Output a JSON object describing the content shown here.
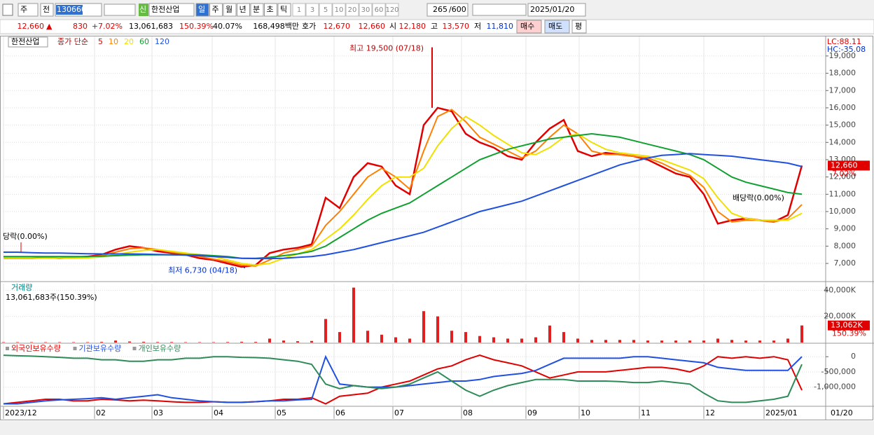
{
  "toolbar": {
    "market": "주",
    "market2": "전",
    "code": "130660",
    "badge": "신",
    "name": "한전산업",
    "periods": [
      "일",
      "주",
      "월",
      "년",
      "분",
      "초",
      "틱"
    ],
    "units": [
      "1",
      "3",
      "5",
      "10",
      "20",
      "30",
      "60",
      "120"
    ],
    "count": "265",
    "total": "/600",
    "date": "2025/01/20"
  },
  "quote_bar": {
    "price": "12,660",
    "arrow": "▲",
    "change": "830",
    "change_rate": "+7.02%",
    "volume": "13,061,683",
    "volume_rate": "150.39%",
    "turnover": "40.07%",
    "amount": "168,498백만",
    "ask_label": "호가",
    "ask": "12,670",
    "bid": "12,660",
    "open_label": "시",
    "open": "12,180",
    "high_label": "고",
    "high": "13,570",
    "low_label": "저",
    "low": "11,810",
    "buy": "매수",
    "sell": "매도",
    "avg": "평"
  },
  "chart_data": [
    {
      "type": "line",
      "title": "한전산업",
      "legend_prefix": "종가 단순",
      "xlim": [
        0,
        57
      ],
      "xticks": [
        {
          "value": 0,
          "label": "2023/12"
        },
        {
          "value": 6.5,
          "label": "02"
        },
        {
          "value": 10.6,
          "label": "03"
        },
        {
          "value": 14.9,
          "label": "04"
        },
        {
          "value": 19.4,
          "label": "05"
        },
        {
          "value": 23.6,
          "label": "06"
        },
        {
          "value": 27.8,
          "label": "07"
        },
        {
          "value": 32.7,
          "label": "08"
        },
        {
          "value": 37.3,
          "label": "09"
        },
        {
          "value": 41.1,
          "label": "10"
        },
        {
          "value": 45.4,
          "label": "11"
        },
        {
          "value": 50,
          "label": "12"
        },
        {
          "value": 54.3,
          "label": "2025/01"
        }
      ],
      "end_label": "01/20",
      "ylim": [
        6030,
        20130
      ],
      "yticks": [
        {
          "value": 7000,
          "label": "7,000"
        },
        {
          "value": 8000,
          "label": "8,000"
        },
        {
          "value": 9000,
          "label": "9,000"
        },
        {
          "value": 10000,
          "label": "10,000"
        },
        {
          "value": 11000,
          "label": "11,000"
        },
        {
          "value": 12000,
          "label": "12,000"
        },
        {
          "value": 13000,
          "label": "13,000"
        },
        {
          "value": 14000,
          "label": "14,000"
        },
        {
          "value": 15000,
          "label": "15,000"
        },
        {
          "value": 16000,
          "label": "16,000"
        },
        {
          "value": 17000,
          "label": "17,000"
        },
        {
          "value": 18000,
          "label": "18,000"
        },
        {
          "value": 19000,
          "label": "19,000"
        }
      ],
      "grid": true,
      "series": [
        {
          "name": "5",
          "color": "#e00000",
          "values": [
            7300,
            7300,
            7300,
            7350,
            7300,
            7350,
            7400,
            7500,
            7800,
            8000,
            7900,
            7700,
            7600,
            7500,
            7300,
            7200,
            7000,
            6800,
            6900,
            7600,
            7800,
            7900,
            8100,
            10800,
            10200,
            12000,
            12800,
            12600,
            11500,
            11000,
            15000,
            16000,
            15800,
            14500,
            14000,
            13700,
            13200,
            13000,
            14000,
            14800,
            15300,
            13500,
            13200,
            13400,
            13300,
            13200,
            13000,
            12600,
            12200,
            12000,
            11000,
            9300,
            9500,
            9600,
            9500,
            9400,
            9800,
            12660
          ]
        },
        {
          "name": "10",
          "color": "#ff8000",
          "values": [
            7300,
            7300,
            7300,
            7320,
            7320,
            7330,
            7370,
            7450,
            7650,
            7850,
            7900,
            7800,
            7650,
            7550,
            7400,
            7250,
            7100,
            6900,
            6850,
            7200,
            7600,
            7800,
            8000,
            9200,
            10000,
            11000,
            12000,
            12500,
            12000,
            11300,
            13500,
            15500,
            15900,
            15200,
            14300,
            13900,
            13500,
            13100,
            13500,
            14300,
            15000,
            14500,
            13500,
            13300,
            13300,
            13200,
            13100,
            12800,
            12400,
            12100,
            11400,
            10000,
            9400,
            9500,
            9500,
            9400,
            9600,
            10400
          ]
        },
        {
          "name": "20",
          "color": "#f0e000",
          "values": [
            7300,
            7300,
            7300,
            7300,
            7300,
            7300,
            7320,
            7380,
            7500,
            7650,
            7750,
            7800,
            7700,
            7600,
            7500,
            7400,
            7200,
            7000,
            6900,
            7000,
            7300,
            7550,
            7800,
            8400,
            9000,
            9800,
            10700,
            11500,
            12000,
            12000,
            12500,
            13800,
            14800,
            15500,
            15000,
            14400,
            13900,
            13400,
            13300,
            13700,
            14300,
            14500,
            14000,
            13600,
            13400,
            13300,
            13200,
            13000,
            12700,
            12400,
            11900,
            10800,
            9900,
            9600,
            9500,
            9500,
            9500,
            9900
          ]
        },
        {
          "name": "60",
          "color": "#10a030",
          "values": [
            7400,
            7400,
            7400,
            7400,
            7400,
            7400,
            7400,
            7420,
            7450,
            7480,
            7500,
            7500,
            7500,
            7500,
            7500,
            7450,
            7400,
            7300,
            7300,
            7350,
            7450,
            7550,
            7700,
            8000,
            8500,
            9000,
            9500,
            9900,
            10200,
            10500,
            11000,
            11500,
            12000,
            12500,
            13000,
            13300,
            13600,
            13800,
            14000,
            14200,
            14300,
            14400,
            14500,
            14400,
            14300,
            14100,
            13900,
            13700,
            13500,
            13300,
            13000,
            12500,
            12000,
            11700,
            11500,
            11300,
            11100,
            11000
          ]
        },
        {
          "name": "120",
          "color": "#2050e0",
          "values": [
            7650,
            7650,
            7620,
            7600,
            7600,
            7580,
            7560,
            7550,
            7550,
            7550,
            7540,
            7520,
            7500,
            7480,
            7450,
            7400,
            7350,
            7300,
            7280,
            7280,
            7300,
            7350,
            7400,
            7500,
            7650,
            7800,
            8000,
            8200,
            8400,
            8600,
            8800,
            9100,
            9400,
            9700,
            10000,
            10200,
            10400,
            10600,
            10900,
            11200,
            11500,
            11800,
            12100,
            12400,
            12700,
            12900,
            13100,
            13250,
            13300,
            13350,
            13300,
            13250,
            13200,
            13100,
            13000,
            12900,
            12800,
            12600
          ]
        }
      ],
      "annotations": [
        {
          "text": "최고 19,500 (07/18)",
          "value": 19500,
          "x": 30.6
        },
        {
          "text": "최저 6,730 (04/18)",
          "value": 6730,
          "x": 17.2
        }
      ],
      "notes": [
        "당락(0.00%)",
        "배당락(0.00%)"
      ],
      "current_value": 12660,
      "current_label": "12,660",
      "change_label": "7.02%",
      "lc_label": "LC:88.11",
      "hc_label": "HC:-35.08"
    },
    {
      "type": "bar",
      "title": "거래량",
      "subtitle": "13,061,683주(150.39%)",
      "xlim": [
        0,
        57
      ],
      "color": "#e02020",
      "values": [
        300,
        300,
        300,
        300,
        300,
        300,
        300,
        500,
        1500,
        800,
        600,
        400,
        400,
        300,
        300,
        300,
        400,
        600,
        500,
        3000,
        1500,
        1000,
        1200,
        18000,
        8000,
        42000,
        9000,
        6000,
        4000,
        3000,
        24000,
        20000,
        9000,
        8000,
        5000,
        4000,
        3000,
        3000,
        4000,
        13000,
        8000,
        3000,
        2000,
        2000,
        2000,
        2000,
        1500,
        1500,
        1500,
        1500,
        1500,
        3000,
        2000,
        1500,
        1500,
        1500,
        3000,
        13062
      ],
      "ylim": [
        0,
        45000
      ],
      "yticks": [
        {
          "value": 20000,
          "label": "20,000K"
        },
        {
          "value": 40000,
          "label": "40,000K"
        }
      ],
      "current_value": 13062,
      "current_label": "13,062K",
      "ratio_label": "150.39%"
    },
    {
      "type": "line",
      "xlim": [
        0,
        57
      ],
      "ylim": [
        -1630000,
        420000
      ],
      "yticks": [
        0,
        {
          "value": -500000,
          "label": "-500,000"
        },
        {
          "value": -1000000,
          "label": "-1,000,000"
        }
      ],
      "series": [
        {
          "name": "외국인보유수량",
          "color": "#e00000",
          "values": [
            -1550000,
            -1500000,
            -1450000,
            -1400000,
            -1400000,
            -1450000,
            -1450000,
            -1400000,
            -1420000,
            -1450000,
            -1430000,
            -1450000,
            -1480000,
            -1500000,
            -1500000,
            -1480000,
            -1500000,
            -1500000,
            -1480000,
            -1450000,
            -1400000,
            -1400000,
            -1350000,
            -1550000,
            -1300000,
            -1250000,
            -1200000,
            -1000000,
            -900000,
            -800000,
            -600000,
            -400000,
            -300000,
            -100000,
            50000,
            -100000,
            -200000,
            -300000,
            -500000,
            -700000,
            -600000,
            -500000,
            -500000,
            -500000,
            -450000,
            -400000,
            -350000,
            -350000,
            -400000,
            -500000,
            -300000,
            0,
            -50000,
            0,
            -50000,
            0,
            -100000,
            -1100000
          ]
        },
        {
          "name": "기관보유수량",
          "color": "#2050e0",
          "values": [
            -1550000,
            -1550000,
            -1500000,
            -1450000,
            -1420000,
            -1400000,
            -1380000,
            -1350000,
            -1400000,
            -1350000,
            -1300000,
            -1250000,
            -1350000,
            -1400000,
            -1450000,
            -1480000,
            -1500000,
            -1500000,
            -1480000,
            -1450000,
            -1450000,
            -1420000,
            -1400000,
            0,
            -900000,
            -950000,
            -1000000,
            -1000000,
            -1000000,
            -950000,
            -900000,
            -850000,
            -800000,
            -800000,
            -750000,
            -650000,
            -600000,
            -550000,
            -450000,
            -250000,
            -50000,
            -50000,
            -50000,
            -50000,
            -50000,
            0,
            0,
            -50000,
            -100000,
            -150000,
            -200000,
            -350000,
            -400000,
            -450000,
            -450000,
            -450000,
            -450000,
            0
          ]
        },
        {
          "name": "개인보유수량",
          "color": "#2e8b57",
          "values": [
            50000,
            30000,
            20000,
            0,
            -20000,
            -50000,
            -50000,
            -100000,
            -100000,
            -150000,
            -150000,
            -100000,
            -100000,
            -50000,
            -50000,
            0,
            0,
            -20000,
            -30000,
            -50000,
            -100000,
            -150000,
            -250000,
            -900000,
            -1050000,
            -950000,
            -1000000,
            -1050000,
            -1000000,
            -900000,
            -700000,
            -500000,
            -800000,
            -1100000,
            -1300000,
            -1100000,
            -950000,
            -850000,
            -750000,
            -750000,
            -750000,
            -800000,
            -800000,
            -800000,
            -820000,
            -850000,
            -850000,
            -800000,
            -850000,
            -900000,
            -1200000,
            -1450000,
            -1500000,
            -1500000,
            -1450000,
            -1400000,
            -1300000,
            -250000
          ]
        }
      ]
    }
  ]
}
